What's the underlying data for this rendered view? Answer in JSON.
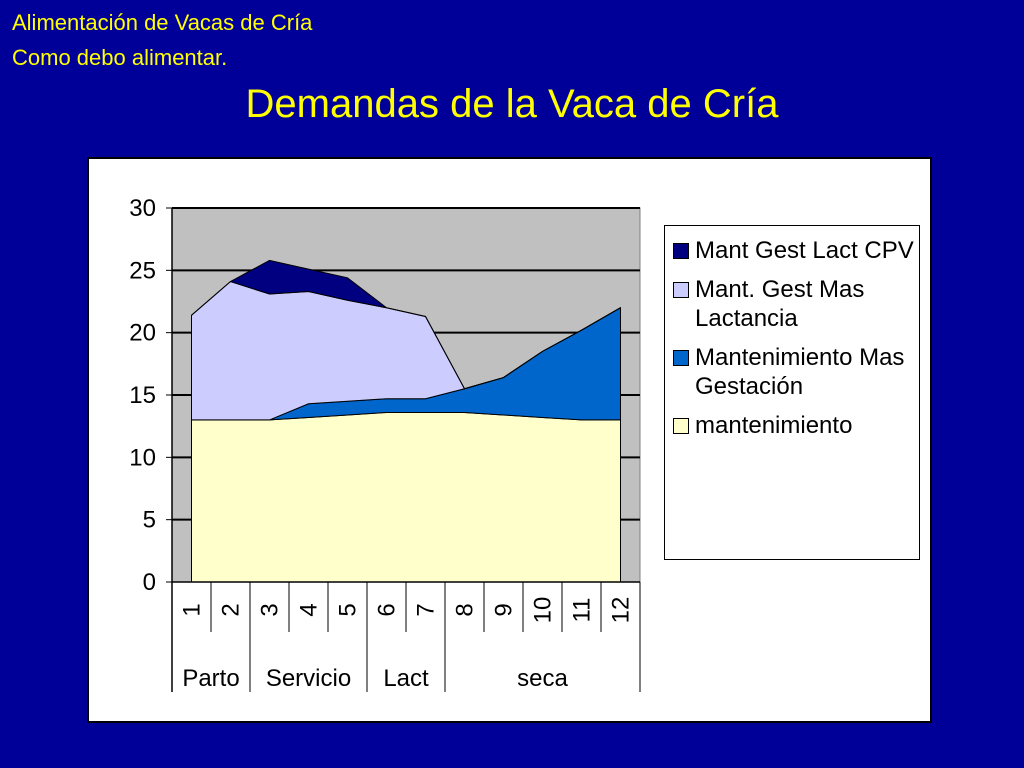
{
  "header": {
    "line1": "Alimentación de Vacas de Cría",
    "line2": "Como debo alimentar."
  },
  "chart_data": {
    "type": "stacked-area",
    "title": "Demandas de la Vaca de Cría",
    "categories": [
      "1",
      "2",
      "3",
      "4",
      "5",
      "6",
      "7",
      "8",
      "9",
      "10",
      "11",
      "12"
    ],
    "groups": [
      {
        "label": "Parto",
        "span": 2
      },
      {
        "label": "Servicio",
        "span": 3
      },
      {
        "label": "Lact",
        "span": 2
      },
      {
        "label": "seca",
        "span": 5
      }
    ],
    "series": [
      {
        "name": "mantenimiento",
        "color": "#ffffcc",
        "values": [
          13,
          13,
          13,
          13.2,
          13.4,
          13.6,
          13.6,
          13.6,
          13.4,
          13.2,
          13,
          13
        ]
      },
      {
        "name": "Mantenimiento Mas Gestación",
        "color": "#0066cc",
        "values": [
          0,
          0,
          0,
          1.1,
          1.1,
          1.1,
          1.1,
          1.9,
          3,
          5.3,
          7.2,
          9
        ]
      },
      {
        "name": "Mant. Gest Mas Lactancia",
        "color": "#ccccff",
        "values": [
          8.4,
          11.1,
          10.1,
          9,
          8.1,
          7.3,
          6.6,
          0,
          0,
          0,
          0,
          0
        ]
      },
      {
        "name": "Mant Gest Lact CPV",
        "color": "#000080",
        "values": [
          0,
          0,
          2.7,
          1.8,
          1.8,
          0,
          0,
          0,
          0,
          0,
          0,
          0
        ]
      }
    ],
    "ylim": [
      0,
      30
    ],
    "yticks": [
      0,
      5,
      10,
      15,
      20,
      25,
      30
    ],
    "grid": true,
    "legend": "right"
  }
}
